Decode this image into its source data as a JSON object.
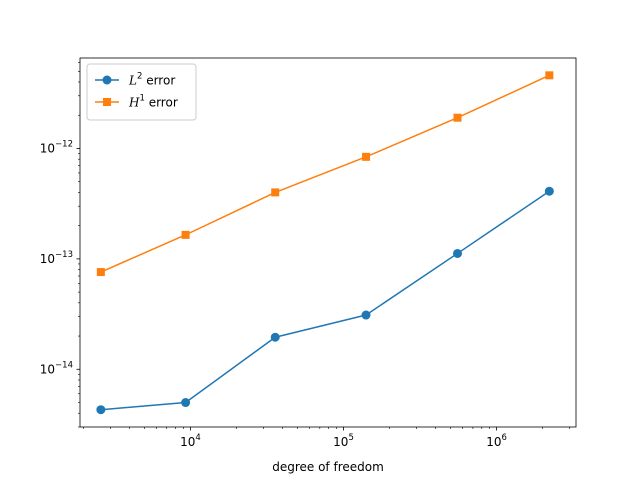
{
  "chart_data": {
    "type": "line",
    "xscale": "log",
    "yscale": "log",
    "xlabel": "degree of freedom",
    "ylabel": "",
    "title": "",
    "xlim": [
      1900,
      3300000
    ],
    "ylim": [
      3e-15,
      6.6e-12
    ],
    "x_ticks": [
      {
        "value": 10000,
        "base": "10",
        "exp": "4"
      },
      {
        "value": 100000,
        "base": "10",
        "exp": "5"
      },
      {
        "value": 1000000,
        "base": "10",
        "exp": "6"
      }
    ],
    "y_ticks": [
      {
        "value": 1e-14,
        "base": "10",
        "exp": "−14"
      },
      {
        "value": 1e-13,
        "base": "10",
        "exp": "−13"
      },
      {
        "value": 1e-12,
        "base": "10",
        "exp": "−12"
      }
    ],
    "legend_position": "upper-left",
    "grid": false,
    "series": [
      {
        "name_var": "L",
        "name_sup": "2",
        "name_rest": " error",
        "color": "#1f77b4",
        "marker": "circle",
        "x": [
          2600,
          9300,
          35800,
          140300,
          555300,
          2210000
        ],
        "y": [
          4.3e-15,
          5e-15,
          1.95e-14,
          3.1e-14,
          1.12e-13,
          4.1e-13
        ]
      },
      {
        "name_var": "H",
        "name_sup": "1",
        "name_rest": " error",
        "color": "#ff7f0e",
        "marker": "square",
        "x": [
          2600,
          9300,
          35800,
          140300,
          555300,
          2210000
        ],
        "y": [
          7.6e-14,
          1.65e-13,
          4e-13,
          8.4e-13,
          1.9e-12,
          4.6e-12
        ]
      }
    ]
  }
}
